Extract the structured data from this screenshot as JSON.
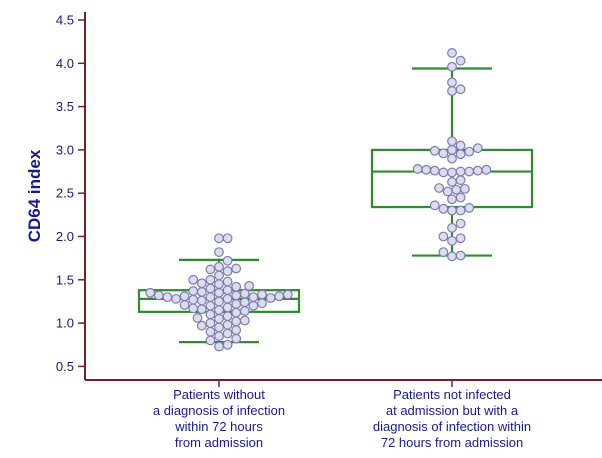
{
  "chart_data": {
    "type": "box",
    "ylabel": "CD64 index",
    "ylim": [
      0.4,
      4.6
    ],
    "yticks": [
      "0.5",
      "1.0",
      "1.5",
      "2.0",
      "2.5",
      "3.0",
      "3.5",
      "4.0",
      "4.5"
    ],
    "groups": [
      {
        "label": "Patients without\na diagnosis of infection\nwithin 72 hours\nfrom admission",
        "whisker_low": 0.78,
        "q1": 1.13,
        "median": 1.28,
        "q3": 1.38,
        "whisker_high": 1.73,
        "points": [
          1.98,
          1.98,
          1.82,
          1.72,
          1.65,
          1.63,
          1.62,
          1.6,
          1.55,
          1.5,
          1.5,
          1.48,
          1.46,
          1.45,
          1.43,
          1.42,
          1.4,
          1.38,
          1.37,
          1.36,
          1.35,
          1.35,
          1.34,
          1.33,
          1.33,
          1.32,
          1.32,
          1.31,
          1.31,
          1.3,
          1.3,
          1.3,
          1.29,
          1.28,
          1.28,
          1.27,
          1.26,
          1.25,
          1.24,
          1.23,
          1.22,
          1.21,
          1.2,
          1.2,
          1.18,
          1.17,
          1.16,
          1.15,
          1.14,
          1.12,
          1.1,
          1.08,
          1.06,
          1.05,
          1.03,
          1.02,
          1.0,
          0.98,
          0.97,
          0.95,
          0.92,
          0.9,
          0.88,
          0.85,
          0.82,
          0.8,
          0.75,
          0.73
        ]
      },
      {
        "label": "Patients not infected\nat admission but with a\ndiagnosis of infection within\n72 hours from admission",
        "whisker_low": 1.78,
        "q1": 2.34,
        "median": 2.75,
        "q3": 3.0,
        "whisker_high": 3.94,
        "points": [
          4.12,
          4.03,
          3.96,
          3.78,
          3.7,
          3.68,
          3.1,
          3.05,
          3.02,
          3.0,
          2.99,
          2.98,
          2.96,
          2.95,
          2.9,
          2.78,
          2.77,
          2.77,
          2.76,
          2.76,
          2.75,
          2.75,
          2.74,
          2.74,
          2.65,
          2.63,
          2.56,
          2.55,
          2.54,
          2.52,
          2.45,
          2.43,
          2.36,
          2.33,
          2.32,
          2.3,
          2.3,
          2.15,
          2.1,
          2.0,
          1.98,
          1.95,
          1.82,
          1.78,
          1.77
        ]
      }
    ],
    "colors": {
      "axis": "#7a1f2a",
      "box": "#2e8b2e",
      "point_fill": "#dcdcf0",
      "point_stroke": "#7d7dab",
      "label": "#1a1a8e"
    }
  }
}
